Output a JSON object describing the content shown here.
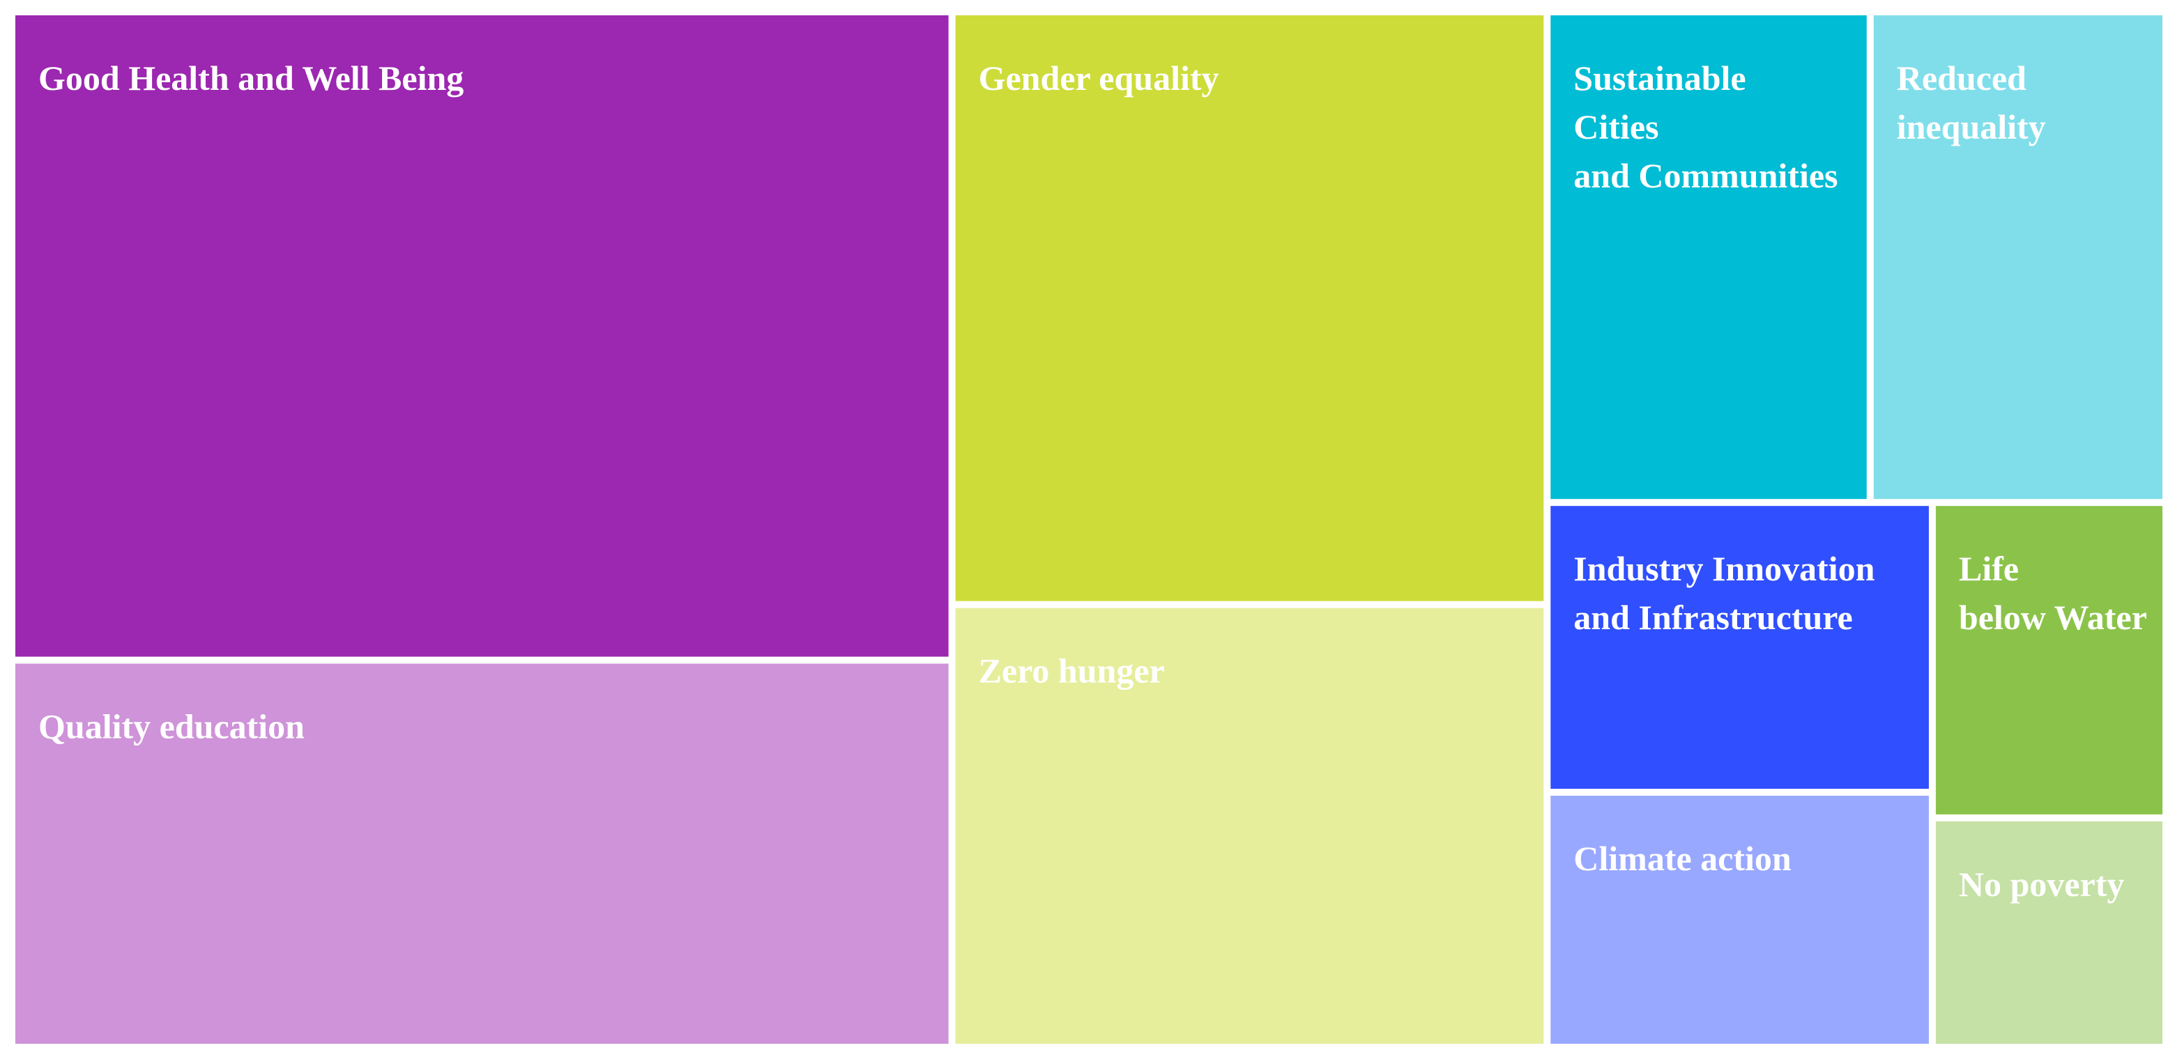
{
  "chart_data": {
    "type": "treemap",
    "categories": [
      "Good Health and Well Being",
      "Quality education",
      "Gender equality",
      "Zero hunger",
      "Sustainable\nCities\nand Communities",
      "Reduced\ninequality",
      "Industry Innovation\nand Infrastructure",
      "Climate action",
      "Life\nbelow Water",
      "No poverty"
    ],
    "values": [
      27.3,
      16.3,
      15.8,
      11.8,
      7.1,
      6.5,
      5.0,
      4.4,
      3.3,
      2.4
    ],
    "colors": [
      "#9c27b0",
      "#ce93d8",
      "#cddc39",
      "#e6ee9c",
      "#00bcd4",
      "#80deea",
      "#304ffe",
      "#99a8ff",
      "#8bc34a",
      "#c5e1a5"
    ]
  }
}
